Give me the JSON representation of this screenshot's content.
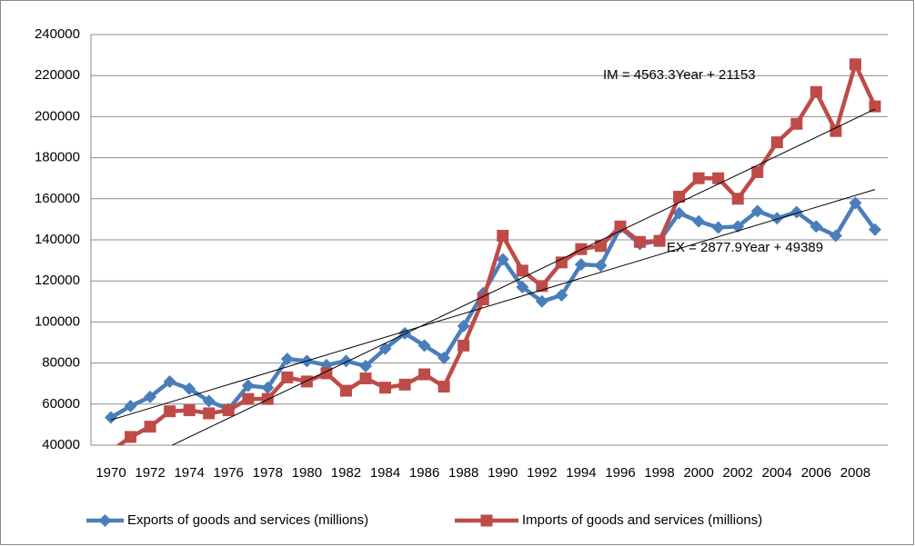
{
  "chart_data": {
    "type": "line",
    "categories": [
      "1970",
      null,
      "1972",
      null,
      "1974",
      null,
      "1976",
      null,
      "1978",
      null,
      "1980",
      null,
      "1982",
      null,
      "1984",
      null,
      "1986",
      null,
      "1988",
      null,
      "1990",
      null,
      "1992",
      null,
      "1994",
      null,
      "1996",
      null,
      "1998",
      null,
      "2000",
      null,
      "2002",
      null,
      "2004",
      null,
      "2006",
      null,
      "2008",
      null
    ],
    "series": [
      {
        "name": "Exports of goods and services (millions)",
        "color": "#4a7ebb",
        "marker": "diamond",
        "values": [
          53500,
          59000,
          63500,
          71000,
          67500,
          61500,
          57500,
          69000,
          68000,
          82000,
          81000,
          79000,
          81000,
          78500,
          87000,
          94500,
          88500,
          82500,
          98000,
          114000,
          130500,
          117000,
          110000,
          113000,
          128000,
          127500,
          146000,
          138000,
          139500,
          153000,
          149000,
          146000,
          146500,
          154000,
          150500,
          153500,
          146500,
          142000,
          158000,
          145000
        ],
        "trendline": {
          "label": "EX = 2877.9Year + 49389",
          "slope": 2877.9,
          "intercept": 49389
        }
      },
      {
        "name": "Imports of goods and services (millions)",
        "color": "#be4b48",
        "marker": "square",
        "values": [
          37000,
          44000,
          49000,
          56500,
          57000,
          55500,
          57000,
          62500,
          62500,
          73000,
          71000,
          75000,
          66500,
          72500,
          68000,
          69500,
          74500,
          68500,
          88500,
          111000,
          142000,
          125000,
          117500,
          129000,
          135500,
          137000,
          146500,
          139000,
          139500,
          161000,
          170000,
          170000,
          160000,
          173000,
          187500,
          196500,
          212000,
          193000,
          225500,
          205000
        ],
        "trendline": {
          "label": "IM = 4563.3Year + 21153",
          "slope": 4563.3,
          "intercept": 21153
        }
      }
    ],
    "ylim": [
      40000,
      240000
    ],
    "yticks": [
      40000,
      60000,
      80000,
      100000,
      120000,
      140000,
      160000,
      180000,
      200000,
      220000,
      240000
    ],
    "grid": true,
    "legend": "bottom"
  }
}
